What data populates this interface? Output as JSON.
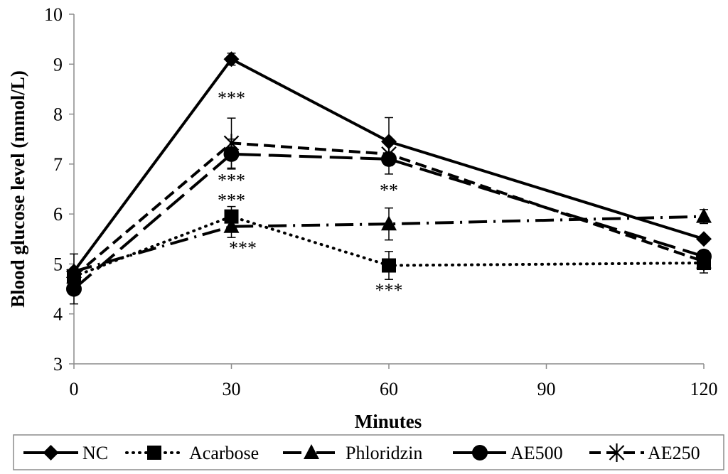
{
  "chart_data": {
    "type": "line",
    "title": "",
    "xlabel": "Minutes",
    "ylabel": "Blood glucose level (mmol/L)",
    "x": [
      0,
      30,
      60,
      120
    ],
    "xticks": [
      "0",
      "30",
      "60",
      "90",
      "120"
    ],
    "xtick_values": [
      0,
      30,
      60,
      90,
      120
    ],
    "yticks": [
      "3",
      "4",
      "5",
      "6",
      "7",
      "8",
      "9",
      "10"
    ],
    "ytick_values": [
      3,
      4,
      5,
      6,
      7,
      8,
      9,
      10
    ],
    "xlim": [
      0,
      120
    ],
    "ylim": [
      3,
      10
    ],
    "grid": false,
    "legend_position": "bottom",
    "series": [
      {
        "name": "NC",
        "marker": "diamond",
        "dash": "solid",
        "values": [
          4.85,
          9.1,
          7.45,
          5.5
        ],
        "errors": [
          0.35,
          0.12,
          0.48,
          0.0
        ]
      },
      {
        "name": "Acarbose",
        "marker": "square",
        "dash": "dotted",
        "values": [
          4.75,
          5.95,
          4.97,
          5.02
        ],
        "errors": [
          0.0,
          0.2,
          0.28,
          0.2
        ]
      },
      {
        "name": "Phloridzin",
        "marker": "triangle",
        "dash": "dashdot",
        "values": [
          4.85,
          5.75,
          5.8,
          5.95
        ],
        "errors": [
          0.0,
          0.22,
          0.32,
          0.14
        ]
      },
      {
        "name": "AE500",
        "marker": "circle",
        "dash": "longdash",
        "values": [
          4.5,
          7.2,
          7.1,
          5.15
        ],
        "errors": [
          0.3,
          0.3,
          0.3,
          0.0
        ]
      },
      {
        "name": "AE250",
        "marker": "asterisk",
        "dash": "dashed",
        "values": [
          4.75,
          7.42,
          7.2,
          5.05
        ],
        "errors": [
          0.0,
          0.5,
          0.2,
          0.0
        ]
      }
    ],
    "annotations": [
      {
        "text": "***",
        "x": 30,
        "y": 8.2
      },
      {
        "text": "***",
        "x": 30,
        "y": 6.55
      },
      {
        "text": "***",
        "x": 30,
        "y": 6.15
      },
      {
        "text": "***",
        "x": 30,
        "y": 5.2
      },
      {
        "text": "**",
        "x": 60,
        "y": 6.35
      },
      {
        "text": "***",
        "x": 60,
        "y": 4.35
      }
    ]
  }
}
